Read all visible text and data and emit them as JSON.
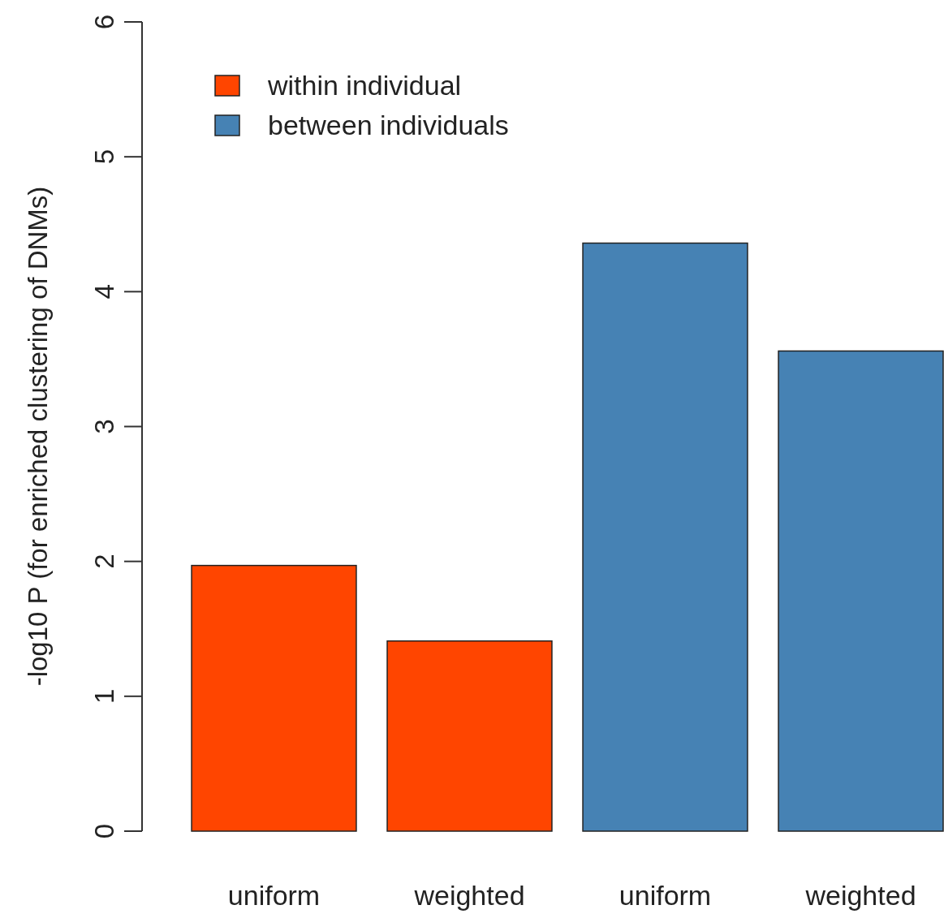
{
  "chart_data": {
    "type": "bar",
    "ylabel": "-log10 P (for enriched clustering of DNMs)",
    "categories": [
      "uniform",
      "weighted",
      "uniform",
      "weighted"
    ],
    "series": [
      {
        "name": "within individual",
        "color": "#ff4500",
        "values": [
          1.97,
          1.41,
          null,
          null
        ]
      },
      {
        "name": "between individuals",
        "color": "#4682b4",
        "values": [
          null,
          null,
          4.36,
          3.56
        ]
      }
    ],
    "ylim": [
      0,
      6
    ],
    "yticks": [
      0,
      1,
      2,
      3,
      4,
      5,
      6
    ],
    "legend": "top left"
  }
}
